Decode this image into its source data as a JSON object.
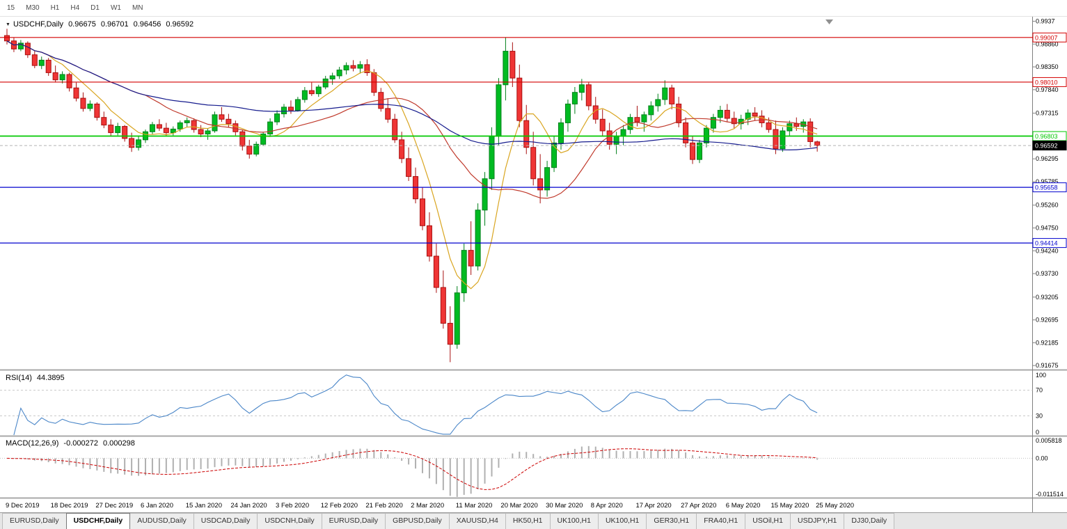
{
  "toolbar": {
    "timeframes": [
      "15",
      "M30",
      "H1",
      "H4",
      "D1",
      "W1",
      "MN"
    ]
  },
  "header": {
    "dropdown_icon": "▼",
    "symbol": "USDCHF,Daily",
    "open": "0.96675",
    "high": "0.96701",
    "low": "0.96456",
    "close": "0.96592"
  },
  "rsi_header": {
    "label": "RSI(14)",
    "value": "44.3895"
  },
  "macd_header": {
    "label": "MACD(12,26,9)",
    "value_main": "-0.000272",
    "value_signal": "0.000298"
  },
  "tabs": {
    "items": [
      {
        "label": "EURUSD,Daily",
        "active": false
      },
      {
        "label": "USDCHF,Daily",
        "active": true
      },
      {
        "label": "AUDUSD,Daily",
        "active": false
      },
      {
        "label": "USDCAD,Daily",
        "active": false
      },
      {
        "label": "USDCNH,Daily",
        "active": false
      },
      {
        "label": "EURUSD,Daily",
        "active": false
      },
      {
        "label": "GBPUSD,Daily",
        "active": false
      },
      {
        "label": "XAUUSD,H4",
        "active": false
      },
      {
        "label": "HK50,H1",
        "active": false
      },
      {
        "label": "UK100,H1",
        "active": false
      },
      {
        "label": "UK100,H1",
        "active": false
      },
      {
        "label": "GER30,H1",
        "active": false
      },
      {
        "label": "FRA40,H1",
        "active": false
      },
      {
        "label": "USOil,H1",
        "active": false
      },
      {
        "label": "USDJPY,H1",
        "active": false
      },
      {
        "label": "DJ30,Daily",
        "active": false
      }
    ]
  },
  "chart_data": {
    "type": "candlestick",
    "symbol": "USDCHF",
    "timeframe": "Daily",
    "last_ohlc": {
      "open": 0.96675,
      "high": 0.96701,
      "low": 0.96456,
      "close": 0.96592
    },
    "price_range": [
      0.916,
      0.9944
    ],
    "price_axis_ticks": [
      {
        "label": "0.9937",
        "value": 0.9937
      },
      {
        "label": "0.98860",
        "value": 0.9886
      },
      {
        "label": "0.98350",
        "value": 0.9835
      },
      {
        "label": "0.97840",
        "value": 0.9784
      },
      {
        "label": "0.97315",
        "value": 0.97315
      },
      {
        "label": "0.96295",
        "value": 0.96295
      },
      {
        "label": "0.95785",
        "value": 0.95785
      },
      {
        "label": "0.95260",
        "value": 0.9526
      },
      {
        "label": "0.94750",
        "value": 0.9475
      },
      {
        "label": "0.94240",
        "value": 0.9424
      },
      {
        "label": "0.93730",
        "value": 0.9373
      },
      {
        "label": "0.93205",
        "value": 0.93205
      },
      {
        "label": "0.92695",
        "value": 0.92695
      },
      {
        "label": "0.92185",
        "value": 0.92185
      },
      {
        "label": "0.91675",
        "value": 0.91675
      }
    ],
    "levels": [
      {
        "label": "0.99007",
        "value": 0.99007,
        "color": "#d40000",
        "width": 1.2,
        "style": "solid"
      },
      {
        "label": "0.98010",
        "value": 0.9801,
        "color": "#d40000",
        "width": 1.2,
        "style": "solid"
      },
      {
        "label": "0.96803",
        "value": 0.96803,
        "color": "#00c800",
        "width": 1.8,
        "style": "solid"
      },
      {
        "label": "0.96592",
        "value": 0.96592,
        "color": "#000000",
        "width": 1.0,
        "style": "dashed",
        "current": true
      },
      {
        "label": "0.95658",
        "value": 0.95658,
        "color": "#0000cd",
        "width": 1.2,
        "style": "solid"
      },
      {
        "label": "0.94414",
        "value": 0.94414,
        "color": "#0000cd",
        "width": 1.2,
        "style": "solid"
      }
    ],
    "date_labels": [
      "9 Dec 2019",
      "18 Dec 2019",
      "27 Dec 2019",
      "6 Jan 2020",
      "15 Jan 2020",
      "24 Jan 2020",
      "3 Feb 2020",
      "12 Feb 2020",
      "21 Feb 2020",
      "2 Mar 2020",
      "11 Mar 2020",
      "20 Mar 2020",
      "30 Mar 2020",
      "8 Apr 2020",
      "17 Apr 2020",
      "27 Apr 2020",
      "6 May 2020",
      "15 May 2020",
      "25 May 2020"
    ],
    "colors": {
      "bull": "#00bb22",
      "bull_border": "#00801a",
      "bear": "#ef3535",
      "bear_border": "#a81010",
      "bid_line": "#b4b4b4",
      "axis_text": "#000000"
    },
    "moving_averages": [
      {
        "name": "fast",
        "period": 7,
        "color": "#d9a520"
      },
      {
        "name": "medium",
        "period": 21,
        "color": "#c0392b"
      },
      {
        "name": "slow",
        "period": 58,
        "color": "#151b8d"
      }
    ],
    "indicators": {
      "rsi": {
        "period": 14,
        "current": 44.3895,
        "line_color": "#4a86c8",
        "range": [
          0,
          100
        ],
        "dashed_levels": [
          70,
          30
        ],
        "axis_ticks": [
          {
            "label": "100",
            "value": 100
          },
          {
            "label": "70",
            "value": 70
          },
          {
            "label": "30",
            "value": 30
          },
          {
            "label": "0",
            "value": 0
          }
        ]
      },
      "macd": {
        "fast": 12,
        "slow": 26,
        "signal": 9,
        "current_macd": -0.000272,
        "current_signal": 0.000298,
        "hist_color": "#b0b0b0",
        "signal_color": "#cc0000",
        "range": [
          -0.0121,
          0.0066
        ],
        "axis_ticks": [
          {
            "label": "0.005818",
            "value": 0.005818
          },
          {
            "label": "0.00",
            "value": 0
          },
          {
            "label": "-0.011514",
            "value": -0.011514
          }
        ]
      }
    },
    "bars": [
      [
        0.9905,
        0.992,
        0.9885,
        0.9893
      ],
      [
        0.9893,
        0.99,
        0.9868,
        0.9875
      ],
      [
        0.9875,
        0.9895,
        0.987,
        0.9888
      ],
      [
        0.9888,
        0.9892,
        0.9855,
        0.9862
      ],
      [
        0.9862,
        0.987,
        0.9832,
        0.9838
      ],
      [
        0.9838,
        0.9858,
        0.983,
        0.985
      ],
      [
        0.985,
        0.9855,
        0.9815,
        0.9822
      ],
      [
        0.9822,
        0.9838,
        0.98,
        0.9806
      ],
      [
        0.9806,
        0.9825,
        0.9798,
        0.9818
      ],
      [
        0.9818,
        0.9822,
        0.978,
        0.9788
      ],
      [
        0.9788,
        0.98,
        0.9758,
        0.9765
      ],
      [
        0.9765,
        0.9778,
        0.9735,
        0.9742
      ],
      [
        0.9742,
        0.976,
        0.9736,
        0.9752
      ],
      [
        0.9752,
        0.9756,
        0.9715,
        0.9722
      ],
      [
        0.9722,
        0.9735,
        0.9698,
        0.9705
      ],
      [
        0.9705,
        0.9718,
        0.968,
        0.9688
      ],
      [
        0.9688,
        0.971,
        0.9682,
        0.9702
      ],
      [
        0.9702,
        0.9705,
        0.9668,
        0.9675
      ],
      [
        0.9675,
        0.9688,
        0.9645,
        0.9655
      ],
      [
        0.9655,
        0.968,
        0.9648,
        0.9672
      ],
      [
        0.9672,
        0.9695,
        0.9665,
        0.969
      ],
      [
        0.969,
        0.9712,
        0.9685,
        0.9706
      ],
      [
        0.9706,
        0.9718,
        0.9692,
        0.9698
      ],
      [
        0.9698,
        0.971,
        0.968,
        0.9688
      ],
      [
        0.9688,
        0.9702,
        0.9682,
        0.9696
      ],
      [
        0.9696,
        0.9715,
        0.969,
        0.971
      ],
      [
        0.971,
        0.9722,
        0.97,
        0.9715
      ],
      [
        0.9715,
        0.972,
        0.9688,
        0.9695
      ],
      [
        0.9695,
        0.9705,
        0.9678,
        0.9685
      ],
      [
        0.9685,
        0.9698,
        0.9672,
        0.9692
      ],
      [
        0.9692,
        0.9735,
        0.9688,
        0.9728
      ],
      [
        0.9728,
        0.9745,
        0.9712,
        0.9718
      ],
      [
        0.9718,
        0.973,
        0.97,
        0.9708
      ],
      [
        0.9708,
        0.9715,
        0.9682,
        0.969
      ],
      [
        0.969,
        0.9695,
        0.9648,
        0.9658
      ],
      [
        0.9658,
        0.9672,
        0.963,
        0.964
      ],
      [
        0.964,
        0.9668,
        0.9635,
        0.9662
      ],
      [
        0.9662,
        0.969,
        0.9658,
        0.9685
      ],
      [
        0.9685,
        0.972,
        0.968,
        0.9712
      ],
      [
        0.9712,
        0.9738,
        0.9705,
        0.973
      ],
      [
        0.973,
        0.9752,
        0.9722,
        0.9745
      ],
      [
        0.9745,
        0.976,
        0.973,
        0.9738
      ],
      [
        0.9738,
        0.9768,
        0.9735,
        0.9762
      ],
      [
        0.9762,
        0.979,
        0.9755,
        0.9782
      ],
      [
        0.9782,
        0.98,
        0.977,
        0.9775
      ],
      [
        0.9775,
        0.9795,
        0.9768,
        0.979
      ],
      [
        0.979,
        0.9815,
        0.9785,
        0.9808
      ],
      [
        0.9808,
        0.9822,
        0.9795,
        0.9815
      ],
      [
        0.9815,
        0.9835,
        0.9808,
        0.9828
      ],
      [
        0.9828,
        0.9845,
        0.9818,
        0.9838
      ],
      [
        0.9838,
        0.985,
        0.9825,
        0.9832
      ],
      [
        0.9832,
        0.9848,
        0.982,
        0.984
      ],
      [
        0.984,
        0.9852,
        0.9815,
        0.9822
      ],
      [
        0.9822,
        0.983,
        0.977,
        0.9778
      ],
      [
        0.9778,
        0.9788,
        0.9735,
        0.9742
      ],
      [
        0.9742,
        0.9765,
        0.971,
        0.9718
      ],
      [
        0.9718,
        0.973,
        0.9665,
        0.9672
      ],
      [
        0.9672,
        0.969,
        0.962,
        0.963
      ],
      [
        0.963,
        0.9655,
        0.958,
        0.959
      ],
      [
        0.959,
        0.961,
        0.953,
        0.954
      ],
      [
        0.954,
        0.9565,
        0.947,
        0.948
      ],
      [
        0.948,
        0.951,
        0.94,
        0.9412
      ],
      [
        0.9412,
        0.944,
        0.933,
        0.9342
      ],
      [
        0.9342,
        0.938,
        0.925,
        0.9262
      ],
      [
        0.9262,
        0.93,
        0.9175,
        0.9215
      ],
      [
        0.9215,
        0.9345,
        0.9205,
        0.933
      ],
      [
        0.933,
        0.944,
        0.931,
        0.9425
      ],
      [
        0.9425,
        0.949,
        0.937,
        0.939
      ],
      [
        0.939,
        0.953,
        0.938,
        0.9515
      ],
      [
        0.9515,
        0.96,
        0.948,
        0.9585
      ],
      [
        0.9585,
        0.97,
        0.956,
        0.968
      ],
      [
        0.968,
        0.981,
        0.966,
        0.9795
      ],
      [
        0.9795,
        0.9901,
        0.976,
        0.987
      ],
      [
        0.987,
        0.989,
        0.979,
        0.981
      ],
      [
        0.981,
        0.984,
        0.97,
        0.9715
      ],
      [
        0.9715,
        0.975,
        0.964,
        0.9655
      ],
      [
        0.9655,
        0.969,
        0.957,
        0.9585
      ],
      [
        0.9585,
        0.964,
        0.953,
        0.956
      ],
      [
        0.956,
        0.9625,
        0.9545,
        0.961
      ],
      [
        0.961,
        0.968,
        0.96,
        0.9665
      ],
      [
        0.9665,
        0.972,
        0.965,
        0.971
      ],
      [
        0.971,
        0.9762,
        0.969,
        0.9752
      ],
      [
        0.9752,
        0.979,
        0.973,
        0.9778
      ],
      [
        0.9778,
        0.9808,
        0.976,
        0.9795
      ],
      [
        0.9795,
        0.98,
        0.9738,
        0.9748
      ],
      [
        0.9748,
        0.9768,
        0.9708,
        0.9718
      ],
      [
        0.9718,
        0.974,
        0.968,
        0.9692
      ],
      [
        0.9692,
        0.971,
        0.965,
        0.9662
      ],
      [
        0.9662,
        0.969,
        0.964,
        0.968
      ],
      [
        0.968,
        0.9705,
        0.966,
        0.9695
      ],
      [
        0.9695,
        0.973,
        0.9685,
        0.9722
      ],
      [
        0.9722,
        0.9748,
        0.9702,
        0.9712
      ],
      [
        0.9712,
        0.9735,
        0.969,
        0.9728
      ],
      [
        0.9728,
        0.9758,
        0.9715,
        0.9748
      ],
      [
        0.9748,
        0.9775,
        0.9735,
        0.9762
      ],
      [
        0.9762,
        0.9805,
        0.975,
        0.9788
      ],
      [
        0.9788,
        0.9795,
        0.974,
        0.9752
      ],
      [
        0.9752,
        0.9768,
        0.97,
        0.971
      ],
      [
        0.971,
        0.9722,
        0.9655,
        0.9665
      ],
      [
        0.9665,
        0.968,
        0.9618,
        0.9628
      ],
      [
        0.9628,
        0.9672,
        0.962,
        0.9665
      ],
      [
        0.9665,
        0.9705,
        0.9655,
        0.9698
      ],
      [
        0.9698,
        0.973,
        0.9688,
        0.9722
      ],
      [
        0.9722,
        0.9748,
        0.971,
        0.9738
      ],
      [
        0.9738,
        0.9752,
        0.9712,
        0.972
      ],
      [
        0.972,
        0.9735,
        0.9698,
        0.9708
      ],
      [
        0.9708,
        0.9728,
        0.9695,
        0.9718
      ],
      [
        0.9718,
        0.974,
        0.9705,
        0.9732
      ],
      [
        0.9732,
        0.9745,
        0.9715,
        0.9725
      ],
      [
        0.9725,
        0.9738,
        0.97,
        0.971
      ],
      [
        0.971,
        0.9722,
        0.9688,
        0.9695
      ],
      [
        0.9695,
        0.9715,
        0.964,
        0.9652
      ],
      [
        0.9652,
        0.97,
        0.9645,
        0.9692
      ],
      [
        0.9692,
        0.9715,
        0.968,
        0.9708
      ],
      [
        0.9708,
        0.9722,
        0.9692,
        0.9702
      ],
      [
        0.9702,
        0.9718,
        0.9688,
        0.9712
      ],
      [
        0.9712,
        0.972,
        0.9655,
        0.9668
      ],
      [
        0.96675,
        0.96701,
        0.96456,
        0.96592
      ]
    ]
  }
}
